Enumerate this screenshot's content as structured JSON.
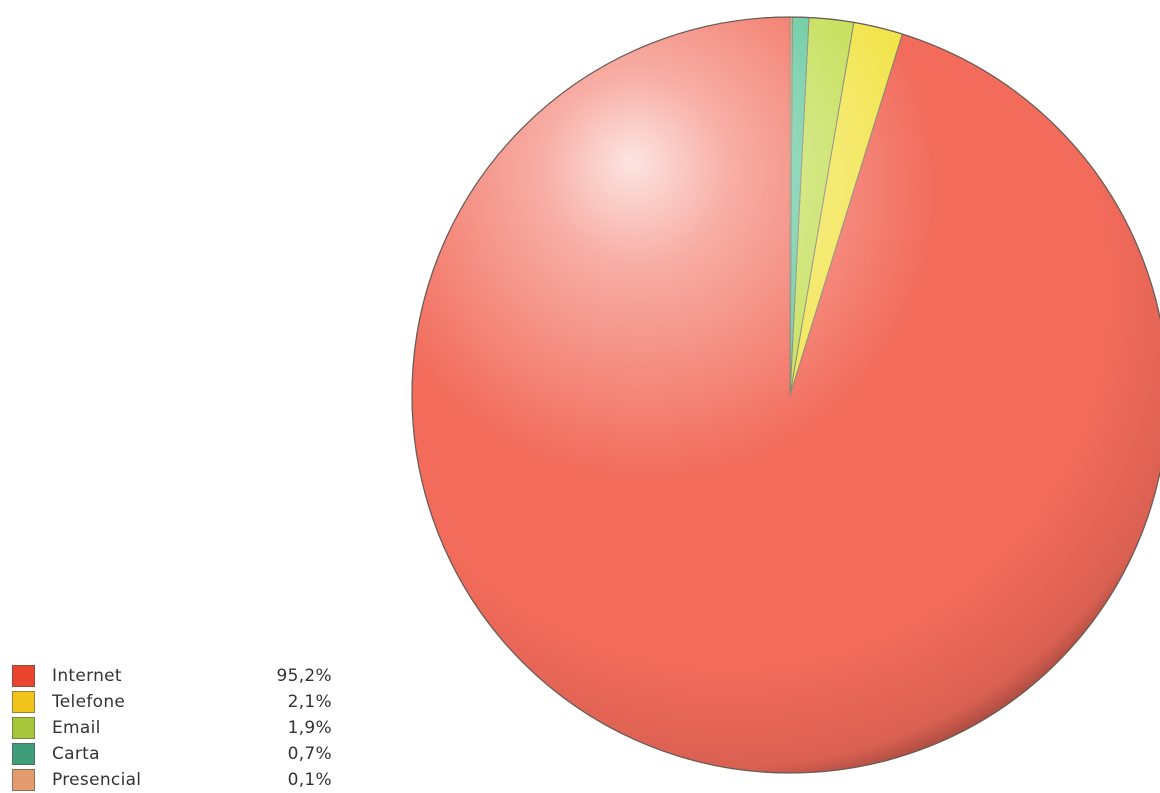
{
  "chart_data": {
    "type": "pie",
    "categories": [
      "Internet",
      "Telefone",
      "Email",
      "Carta",
      "Presencial"
    ],
    "values": [
      95.2,
      2.1,
      1.9,
      0.7,
      0.1
    ],
    "value_labels": [
      "95,2%",
      "2,1%",
      "1,9%",
      "0,7%",
      "0,1%"
    ],
    "colors": [
      "#f26b5b",
      "#f2e44a",
      "#c2de52",
      "#5fc79b",
      "#e39a6c"
    ],
    "legend_colors": [
      "#e8442e",
      "#f0c419",
      "#a8c63a",
      "#3f9e78",
      "#e39a6c"
    ],
    "start_angle_deg": 0,
    "direction": "counterclockwise",
    "legend_position": "bottom-left",
    "title": "",
    "style": "3d-shaded"
  }
}
